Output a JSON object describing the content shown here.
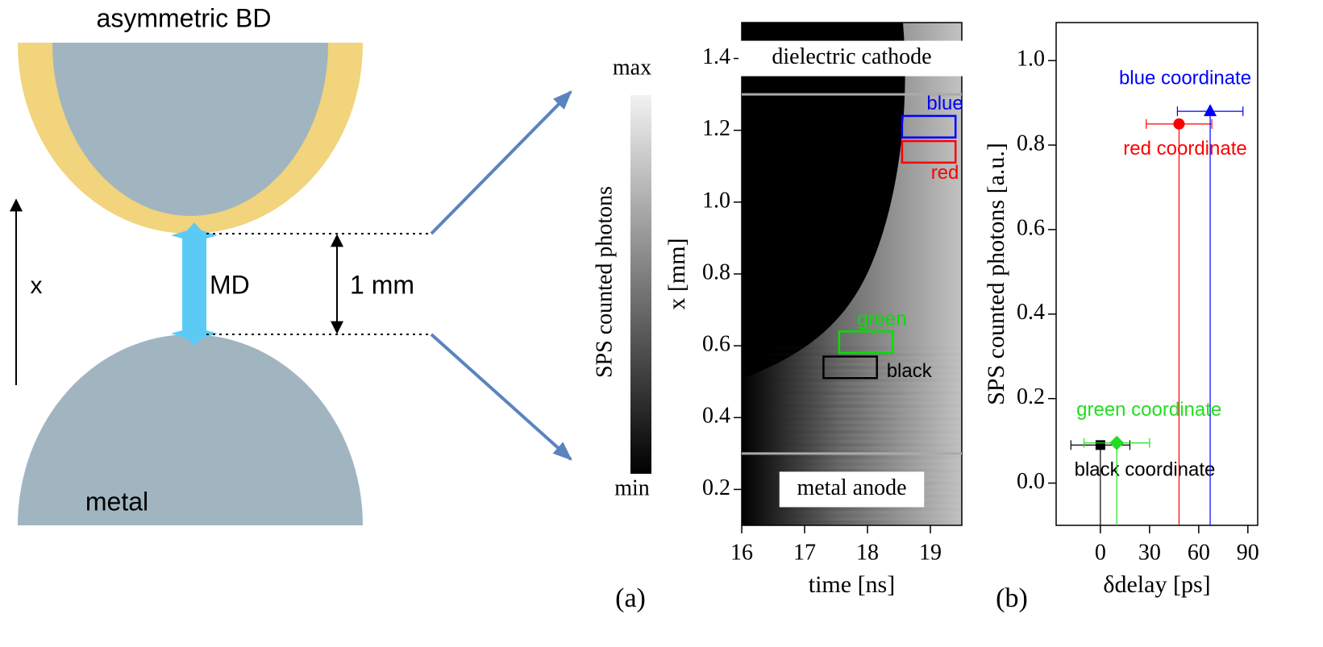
{
  "diagram": {
    "top_label": "asymmetric BD",
    "axis_label": "x",
    "channel_label": "MD",
    "gap_label": "1 mm",
    "bottom_label": "metal"
  },
  "chart_data": [
    {
      "type": "heatmap",
      "panel_label": "(a)",
      "xlabel": "time [ns]",
      "ylabel": "x [mm]",
      "xlim": [
        16,
        19.5
      ],
      "xticks": [
        16,
        17,
        18,
        19
      ],
      "ylim": [
        0.1,
        1.5
      ],
      "yticks": [
        0.2,
        0.4,
        0.6,
        0.8,
        {
          "value": 1,
          "label": "1.0"
        },
        1.2,
        1.4
      ],
      "colorbar": {
        "label": "SPS counted photons",
        "max_label": "max",
        "min_label": "min"
      },
      "annotations": [
        {
          "text": "dielectric cathode",
          "y": 1.4
        },
        {
          "text": "metal anode",
          "y": 0.2
        }
      ],
      "hlines": [
        1.3,
        0.3
      ],
      "regions": [
        {
          "name": "blue",
          "color": "#0000ff",
          "x": [
            18.55,
            19.4
          ],
          "y": [
            1.18,
            1.24
          ],
          "label_position": "above"
        },
        {
          "name": "red",
          "color": "#ff0000",
          "x": [
            18.55,
            19.4
          ],
          "y": [
            1.11,
            1.17
          ],
          "label_position": "below"
        },
        {
          "name": "green",
          "color": "#00e000",
          "x": [
            17.55,
            18.4
          ],
          "y": [
            0.58,
            0.64
          ],
          "label_position": "above"
        },
        {
          "name": "black",
          "color": "#000000",
          "x": [
            17.3,
            18.15
          ],
          "y": [
            0.51,
            0.57
          ],
          "label_position": "right"
        }
      ]
    },
    {
      "type": "scatter",
      "panel_label": "(b)",
      "xlabel": "δdelay [ps]",
      "ylabel": "SPS counted photons [a.u.]",
      "xlim": [
        -27,
        96
      ],
      "xticks": [
        0,
        30,
        60,
        90
      ],
      "ylim": [
        -0.1,
        1.09
      ],
      "yticks": [
        {
          "value": 0,
          "label": "0.0"
        },
        0.2,
        0.4,
        0.6,
        0.8,
        {
          "value": 1,
          "label": "1.0"
        }
      ],
      "series": [
        {
          "name": "black coordinate",
          "color": "#000000",
          "marker": "square",
          "x": 0,
          "y": 0.09,
          "xerr": 18,
          "label_position": "below"
        },
        {
          "name": "green coordinate",
          "color": "#22dd22",
          "marker": "diamond",
          "x": 10,
          "y": 0.095,
          "xerr": 20,
          "label_position": "above"
        },
        {
          "name": "red coordinate",
          "color": "#ff0000",
          "marker": "circle",
          "x": 48,
          "y": 0.85,
          "xerr": 20,
          "label_position": "below"
        },
        {
          "name": "blue coordinate",
          "color": "#0000ff",
          "marker": "triangle",
          "x": 67,
          "y": 0.88,
          "xerr": 20,
          "label_position": "above"
        }
      ]
    }
  ]
}
